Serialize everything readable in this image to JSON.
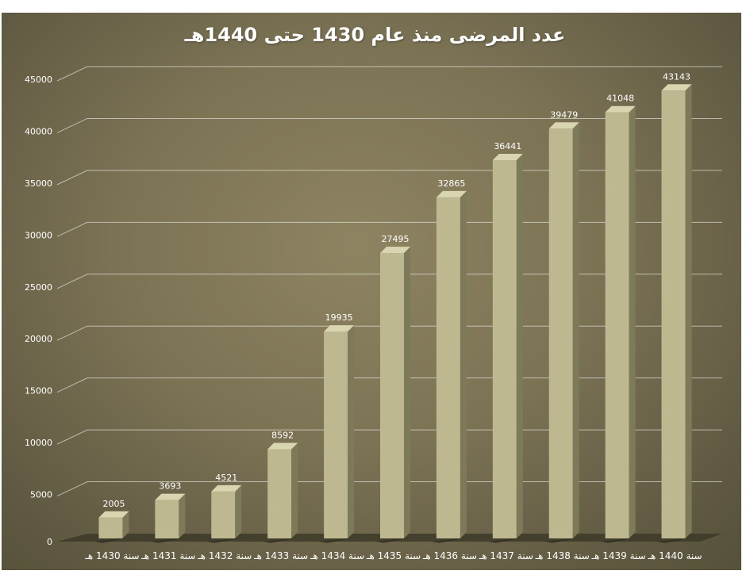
{
  "chart_data": {
    "type": "bar",
    "title": "عدد المرضى منذ عام 1430 حتى 1440هـ",
    "categories": [
      "سنة 1430 هـ",
      "سنة 1431 هـ",
      "سنة 1432 هـ",
      "سنة 1433 هـ",
      "سنة 1434 هـ",
      "سنة 1435 هـ",
      "سنة 1436 هـ",
      "سنة 1437 هـ",
      "سنة 1438 هـ",
      "سنة 1439 هـ",
      "سنة 1440 هـ"
    ],
    "values": [
      2005,
      3693,
      4521,
      8592,
      19935,
      27495,
      32865,
      36441,
      39479,
      41048,
      43143
    ],
    "y_ticks": [
      0,
      5000,
      10000,
      15000,
      20000,
      25000,
      30000,
      35000,
      40000,
      45000
    ],
    "ylim": [
      0,
      45000
    ],
    "grid": true,
    "legend": "none",
    "data_labels": true,
    "colors": {
      "background": "#7b7254",
      "bar_front": "#bdb88f",
      "bar_side": "#7d7a5a",
      "bar_top": "#d9d5b0",
      "gridline": "#ffffff",
      "floor": "#3d3a29",
      "text": "#ffffff"
    }
  }
}
